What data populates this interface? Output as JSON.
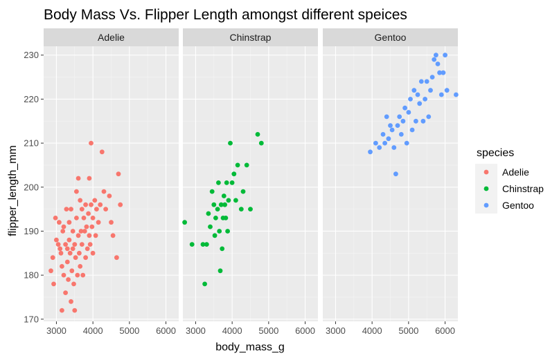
{
  "chart_data": {
    "type": "scatter",
    "title": "Body Mass Vs. Flipper Length amongst different speices",
    "xlabel": "body_mass_g",
    "ylabel": "flipper_length_mm",
    "xlim": [
      2650,
      6350
    ],
    "ylim": [
      169.5,
      232
    ],
    "x_ticks": [
      3000,
      4000,
      5000,
      6000
    ],
    "y_ticks": [
      170,
      180,
      190,
      200,
      210,
      220,
      230
    ],
    "grid": true,
    "facets": [
      "Adelie",
      "Chinstrap",
      "Gentoo"
    ],
    "legend": {
      "title": "species",
      "position": "right",
      "entries": [
        "Adelie",
        "Chinstrap",
        "Gentoo"
      ]
    },
    "colors": {
      "Adelie": "#F8766D",
      "Chinstrap": "#00BA38",
      "Gentoo": "#619CFF"
    },
    "series": [
      {
        "name": "Adelie",
        "points": [
          [
            2850,
            181
          ],
          [
            2900,
            184
          ],
          [
            2925,
            178
          ],
          [
            2975,
            193
          ],
          [
            3000,
            188
          ],
          [
            3050,
            187
          ],
          [
            3075,
            192
          ],
          [
            3100,
            186
          ],
          [
            3125,
            185
          ],
          [
            3150,
            172
          ],
          [
            3150,
            182
          ],
          [
            3175,
            190
          ],
          [
            3200,
            180
          ],
          [
            3200,
            191
          ],
          [
            3250,
            187
          ],
          [
            3250,
            176
          ],
          [
            3275,
            195
          ],
          [
            3300,
            186
          ],
          [
            3300,
            183
          ],
          [
            3325,
            179
          ],
          [
            3350,
            192
          ],
          [
            3350,
            188
          ],
          [
            3375,
            185
          ],
          [
            3400,
            174
          ],
          [
            3400,
            195
          ],
          [
            3425,
            181
          ],
          [
            3450,
            190
          ],
          [
            3450,
            186
          ],
          [
            3475,
            178
          ],
          [
            3500,
            172
          ],
          [
            3500,
            187
          ],
          [
            3525,
            184
          ],
          [
            3550,
            193
          ],
          [
            3550,
            199
          ],
          [
            3575,
            180
          ],
          [
            3600,
            202
          ],
          [
            3600,
            189
          ],
          [
            3625,
            185
          ],
          [
            3650,
            197
          ],
          [
            3650,
            182
          ],
          [
            3675,
            190
          ],
          [
            3700,
            195
          ],
          [
            3700,
            187
          ],
          [
            3725,
            180
          ],
          [
            3750,
            193
          ],
          [
            3775,
            190
          ],
          [
            3800,
            184
          ],
          [
            3800,
            196
          ],
          [
            3825,
            191
          ],
          [
            3850,
            186
          ],
          [
            3875,
            194
          ],
          [
            3900,
            202
          ],
          [
            3900,
            189
          ],
          [
            3925,
            187
          ],
          [
            3950,
            210
          ],
          [
            3950,
            196
          ],
          [
            3975,
            191
          ],
          [
            4000,
            185
          ],
          [
            4000,
            193
          ],
          [
            4050,
            197
          ],
          [
            4075,
            189
          ],
          [
            4100,
            195
          ],
          [
            4150,
            192
          ],
          [
            4200,
            196
          ],
          [
            4250,
            208
          ],
          [
            4300,
            199
          ],
          [
            4350,
            195
          ],
          [
            4450,
            198
          ],
          [
            4500,
            192
          ],
          [
            4550,
            189
          ],
          [
            4650,
            184
          ],
          [
            4700,
            203
          ],
          [
            4750,
            196
          ]
        ]
      },
      {
        "name": "Chinstrap",
        "points": [
          [
            2700,
            192
          ],
          [
            2900,
            187
          ],
          [
            3200,
            187
          ],
          [
            3250,
            178
          ],
          [
            3300,
            187
          ],
          [
            3350,
            194
          ],
          [
            3400,
            191
          ],
          [
            3450,
            199
          ],
          [
            3500,
            196
          ],
          [
            3525,
            189
          ],
          [
            3550,
            193
          ],
          [
            3600,
            195
          ],
          [
            3625,
            201
          ],
          [
            3650,
            190
          ],
          [
            3675,
            181
          ],
          [
            3700,
            196
          ],
          [
            3725,
            186
          ],
          [
            3750,
            193
          ],
          [
            3775,
            198
          ],
          [
            3800,
            196
          ],
          [
            3825,
            193
          ],
          [
            3850,
            201
          ],
          [
            3875,
            190
          ],
          [
            3900,
            197
          ],
          [
            3950,
            210
          ],
          [
            4000,
            201
          ],
          [
            4050,
            203
          ],
          [
            4100,
            197
          ],
          [
            4150,
            205
          ],
          [
            4250,
            195
          ],
          [
            4300,
            199
          ],
          [
            4400,
            205
          ],
          [
            4500,
            195
          ],
          [
            4800,
            210
          ],
          [
            4700,
            212
          ]
        ]
      },
      {
        "name": "Gentoo",
        "points": [
          [
            3950,
            208
          ],
          [
            4100,
            210
          ],
          [
            4200,
            209
          ],
          [
            4300,
            212
          ],
          [
            4350,
            210
          ],
          [
            4400,
            216
          ],
          [
            4450,
            211
          ],
          [
            4500,
            214
          ],
          [
            4550,
            213
          ],
          [
            4600,
            209
          ],
          [
            4650,
            203
          ],
          [
            4700,
            214
          ],
          [
            4750,
            216
          ],
          [
            4800,
            212
          ],
          [
            4850,
            215
          ],
          [
            4900,
            218
          ],
          [
            4950,
            210
          ],
          [
            5000,
            217
          ],
          [
            5050,
            220
          ],
          [
            5100,
            213
          ],
          [
            5150,
            222
          ],
          [
            5200,
            215
          ],
          [
            5250,
            221
          ],
          [
            5300,
            219
          ],
          [
            5350,
            224
          ],
          [
            5400,
            215
          ],
          [
            5450,
            220
          ],
          [
            5500,
            224
          ],
          [
            5550,
            216
          ],
          [
            5600,
            222
          ],
          [
            5650,
            225
          ],
          [
            5700,
            229
          ],
          [
            5750,
            230
          ],
          [
            5800,
            228
          ],
          [
            5850,
            226
          ],
          [
            5900,
            221
          ],
          [
            5950,
            226
          ],
          [
            6000,
            230
          ],
          [
            6050,
            222
          ],
          [
            6300,
            221
          ]
        ]
      }
    ]
  }
}
